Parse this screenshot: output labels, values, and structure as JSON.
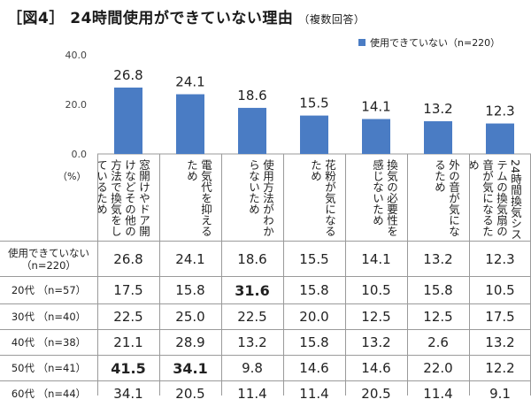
{
  "header": {
    "title": "［図4］ 24時間使用ができていない理由",
    "subtitle": "（複数回答）"
  },
  "unit_label": "（%）",
  "colors": {
    "bar": "#4a7cc4"
  },
  "chart_data": {
    "type": "bar",
    "categories": [
      "窓開けやドア開けなどその他の方法で換気をしているため",
      "電気代を抑えるため",
      "使用方法がわからないため",
      "花粉が気になるため",
      "換気の必要性を感じないため",
      "外の音が気になるため",
      "24時間換気システムの換気扇の音が気になるため"
    ],
    "series": [
      {
        "name": "使用できていない（n=220）",
        "values": [
          26.8,
          24.1,
          18.6,
          15.5,
          14.1,
          13.2,
          12.3
        ]
      }
    ],
    "y_ticks": [
      "0.0",
      "20.0",
      "40.0"
    ],
    "ylim": [
      0,
      40
    ],
    "legend": "top-right"
  },
  "table": {
    "rows": [
      {
        "label": "使用できていない\n（n=220）",
        "values": [
          "26.8",
          "24.1",
          "18.6",
          "15.5",
          "14.1",
          "13.2",
          "12.3"
        ],
        "bold": []
      },
      {
        "label": "20代 （n=57）",
        "values": [
          "17.5",
          "15.8",
          "31.6",
          "15.8",
          "10.5",
          "15.8",
          "10.5"
        ],
        "bold": [
          2
        ]
      },
      {
        "label": "30代 （n=40）",
        "values": [
          "22.5",
          "25.0",
          "22.5",
          "20.0",
          "12.5",
          "12.5",
          "17.5"
        ],
        "bold": []
      },
      {
        "label": "40代 （n=38）",
        "values": [
          "21.1",
          "28.9",
          "13.2",
          "15.8",
          "13.2",
          "2.6",
          "13.2"
        ],
        "bold": []
      },
      {
        "label": "50代 （n=41）",
        "values": [
          "41.5",
          "34.1",
          "9.8",
          "14.6",
          "14.6",
          "22.0",
          "12.2"
        ],
        "bold": [
          0,
          1
        ]
      },
      {
        "label": "60代 （n=44）",
        "values": [
          "34.1",
          "20.5",
          "11.4",
          "11.4",
          "20.5",
          "11.4",
          "9.1"
        ],
        "bold": []
      }
    ]
  }
}
